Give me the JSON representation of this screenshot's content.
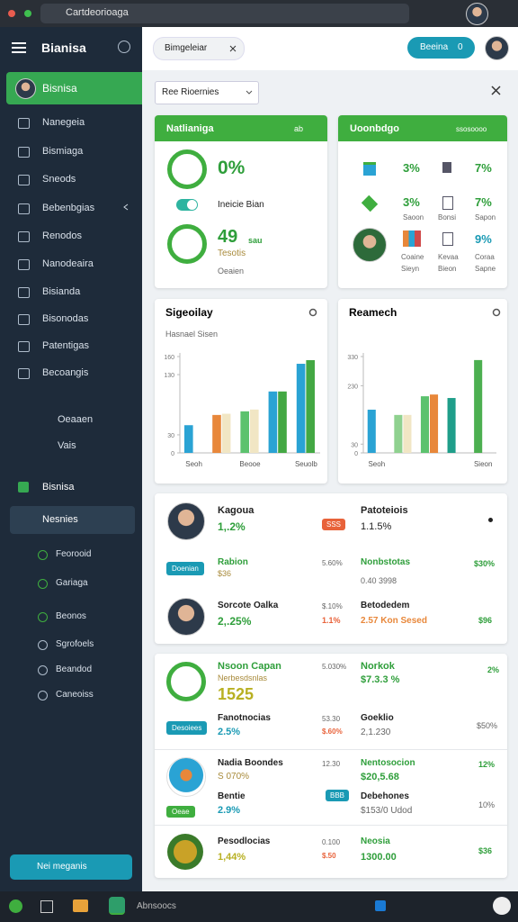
{
  "browser": {
    "url": "Cartdeorioaga"
  },
  "sidebar": {
    "title": "Bianisa",
    "active": "Bisnisa",
    "items": [
      "Nanegeia",
      "Bismiaga",
      "Sneods",
      "Bebenbgias",
      "Renodos",
      "Nanodeaira",
      "Bisianda",
      "Bisonodas",
      "Patentigas",
      "Becoangis"
    ],
    "sub_items": [
      "Oeaaen",
      "Vais"
    ],
    "section": "Bisnisa",
    "selected": "Nesnies",
    "children": [
      "Feorooid",
      "Gariaga",
      "Beonos",
      "Sgrofoels",
      "Beandod",
      "Caneoiss"
    ],
    "button": "Nei meganis"
  },
  "taskbar": {
    "label": "Abnsoocs"
  },
  "header": {
    "chip": "Bimgeleiar",
    "button": "Beeina",
    "badge": "0"
  },
  "filter": {
    "dropdown": "Ree Rioernies"
  },
  "card_left": {
    "title": "Natlianiga",
    "badge": "ab",
    "ring1": "0%",
    "toggle_label": "Ineicie Bian",
    "ring2_value": "49",
    "ring2_unit": "sau",
    "ring2_sub": "Tesotis",
    "ring2_caption": "Oeaien"
  },
  "card_right": {
    "title": "Uoonbdgo",
    "meta": "ssosoooo",
    "row1": [
      "3%",
      "7%"
    ],
    "row2": {
      "value1": "3%",
      "label1": "Saoon",
      "label2": "Bonsi",
      "value3": "7%",
      "label3": "Sapon"
    },
    "row3": {
      "label1a": "Coaine",
      "label1b": "Sieyn",
      "label2a": "Kevaa",
      "label2b": "Bieon",
      "value3": "9%",
      "label3a": "Coraa",
      "label3b": "Sapne"
    }
  },
  "chart_data": [
    {
      "type": "bar",
      "title": "Sigeoilay",
      "subtitle": "Hasnael Sisen",
      "categories": [
        "Seoh",
        null,
        "Beooe",
        null,
        "Seuolb"
      ],
      "ylim": [
        0,
        160
      ],
      "yticks": [
        0,
        30,
        130,
        160
      ],
      "series": [
        {
          "values": [
            46,
            63,
            69,
            102,
            148
          ],
          "colors": [
            "#2aa3d4",
            "#e8873a",
            "#5cc26e",
            "#2aa3d4",
            "#2aa3d4"
          ]
        },
        {
          "values": [
            null,
            65,
            72,
            102,
            154
          ],
          "colors": [
            null,
            "#f1e6c4",
            "#f1e6c4",
            "#43a843",
            "#43a843"
          ]
        }
      ]
    },
    {
      "type": "bar",
      "title": "Reamech",
      "categories": [
        "Seoh",
        null,
        null,
        null,
        "Sieon"
      ],
      "ylim": [
        0,
        330
      ],
      "yticks": [
        0,
        30,
        230,
        330
      ],
      "series": [
        {
          "values": [
            148,
            130,
            194,
            188,
            318
          ],
          "colors": [
            "#2aa3d4",
            "#8fd18f",
            "#5cc26e",
            "#1f9e8a",
            "#4caf50"
          ]
        },
        {
          "values": [
            null,
            130,
            200,
            null,
            null
          ],
          "colors": [
            null,
            "#f1e6c4",
            "#e8873a",
            null,
            null
          ]
        }
      ]
    }
  ],
  "list1": [
    {
      "name": "Kagoua",
      "value": "1,.2%",
      "badge": "SSS",
      "title2": "Patoteiois",
      "value2": "1.1.5%"
    },
    {
      "badge": "Doenian",
      "name": "Rabion",
      "sub": "$36",
      "mid": "5.60%",
      "title2": "Nonbstotas",
      "value2": "0.40 3998",
      "right": "$30%"
    },
    {
      "name": "Sorcote Oalka",
      "value": "2,.25%",
      "mid": "$.10%",
      "mid2": "1.1%",
      "title2": "Betodedem",
      "value2": "2.57 Kon Sesed",
      "right": "$96"
    }
  ],
  "list2": [
    {
      "name": "Nsoon Capan",
      "sub": "Nerbesdsnlas",
      "big": "1525",
      "mid": "5.030%",
      "title2": "Norkok",
      "value2": "$7.3.3 %",
      "right": "2%"
    },
    {
      "badge": "Desoiees",
      "name": "Fanotnocias",
      "value": "2.5%",
      "mid": "53.30",
      "mid2": "$.60%",
      "title2": "Goeklio",
      "value2": "2,1.230",
      "right": "$50%"
    },
    {
      "name": "Nadia Boondes",
      "value": "S 070%",
      "mid": "12.30",
      "title2": "Nentosocion",
      "value2": "$20,5.68",
      "right": "12%"
    },
    {
      "badge": "Oeae",
      "name": "Bentie",
      "value": "2.9%",
      "mid": "BBB",
      "title2": "Debehones",
      "value2": "$153/0 Udod",
      "right": "10%"
    },
    {
      "name": "Pesodlocias",
      "value": "1,44%",
      "mid": "0.100",
      "mid2": "$.50",
      "title2": "Neosia",
      "value2": "1300.00",
      "right": "$36"
    }
  ]
}
